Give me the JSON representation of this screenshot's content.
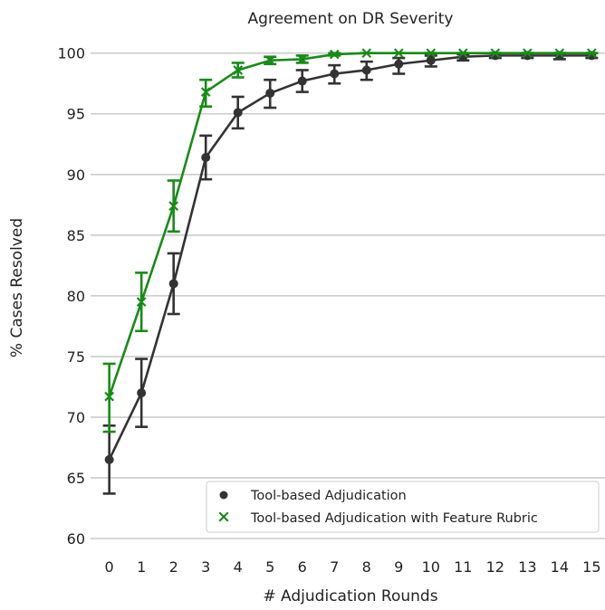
{
  "chart_data": {
    "type": "line",
    "title": "Agreement on DR Severity",
    "xlabel": "# Adjudication Rounds",
    "ylabel": "% Cases Resolved",
    "x": [
      0,
      1,
      2,
      3,
      4,
      5,
      6,
      7,
      8,
      9,
      10,
      11,
      12,
      13,
      14,
      15
    ],
    "x_ticks": [
      "0",
      "1",
      "2",
      "3",
      "4",
      "5",
      "6",
      "7",
      "8",
      "9",
      "10",
      "11",
      "12",
      "13",
      "14",
      "15"
    ],
    "y_ticks": [
      "60",
      "65",
      "70",
      "75",
      "80",
      "85",
      "90",
      "95",
      "100"
    ],
    "ylim": [
      60,
      100.5
    ],
    "xlim": [
      -0.3,
      15.3
    ],
    "grid": "horizontal",
    "legend_position": "bottom-right",
    "series": [
      {
        "name": "Tool-based Adjudication",
        "marker": "circle",
        "color": "#333333",
        "values": [
          66.5,
          72.0,
          81.0,
          91.4,
          95.1,
          96.7,
          97.7,
          98.3,
          98.6,
          99.1,
          99.4,
          99.7,
          99.8,
          99.8,
          99.8,
          99.8
        ],
        "error_low": [
          63.7,
          69.2,
          78.5,
          89.6,
          93.8,
          95.5,
          96.8,
          97.5,
          97.8,
          98.3,
          98.9,
          99.4,
          99.6,
          99.6,
          99.5,
          99.6
        ],
        "error_high": [
          69.3,
          74.8,
          83.5,
          93.2,
          96.4,
          97.8,
          98.6,
          99.0,
          99.3,
          99.6,
          99.8,
          99.9,
          100.0,
          100.0,
          100.0,
          100.0
        ]
      },
      {
        "name": "Tool-based Adjudication with Feature Rubric",
        "marker": "x",
        "color": "#1a8a1a",
        "values": [
          71.7,
          79.5,
          87.4,
          96.8,
          98.6,
          99.4,
          99.5,
          99.9,
          100.0,
          100.0,
          100.0,
          100.0,
          100.0,
          100.0,
          100.0,
          100.0
        ],
        "error_low": [
          68.8,
          77.1,
          85.3,
          95.6,
          98.0,
          99.1,
          99.2,
          99.8,
          100.0,
          100.0,
          100.0,
          100.0,
          100.0,
          100.0,
          100.0,
          100.0
        ],
        "error_high": [
          74.4,
          81.9,
          89.5,
          97.8,
          99.2,
          99.7,
          99.8,
          100.0,
          100.0,
          100.0,
          100.0,
          100.0,
          100.0,
          100.0,
          100.0,
          100.0
        ]
      }
    ]
  }
}
